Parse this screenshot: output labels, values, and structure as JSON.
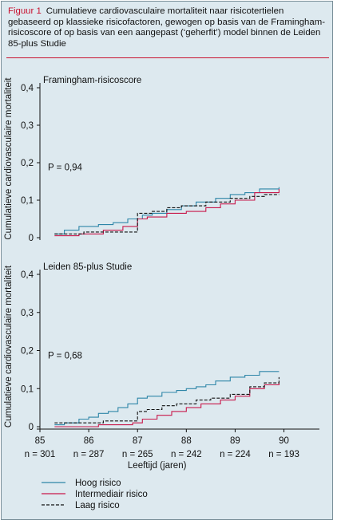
{
  "caption": {
    "label": "Figuur 1",
    "text": "Cumulatieve cardiovasculaire mortaliteit naar risicotertielen gebaseerd op klassieke risicofactoren, gewogen op basis van de Framingham-risicoscore of op basis van een aangepast (‘geherfit’) model binnen de Leiden 85-plus Studie"
  },
  "chart_data": [
    {
      "type": "line",
      "title": "Framingham-risicoscore",
      "annotation": "P = 0,94",
      "ylabel": "Cumulatieve cardiovasculaire mortaliteit",
      "xlim": [
        85,
        90.4
      ],
      "ylim": [
        0,
        0.4
      ],
      "y_ticks": [
        0,
        0.1,
        0.2,
        0.3,
        0.4
      ],
      "y_tick_labels": [
        "0",
        "0,1",
        "0,2",
        "0,3",
        "0,4"
      ],
      "series": [
        {
          "name": "Hoog risico",
          "color": "#2e86a8",
          "dash": "",
          "x": [
            85.3,
            85.5,
            85.8,
            86.0,
            86.2,
            86.5,
            86.8,
            87.1,
            87.3,
            87.6,
            87.9,
            88.2,
            88.6,
            88.9,
            89.2,
            89.5,
            89.9
          ],
          "y": [
            0.01,
            0.02,
            0.03,
            0.03,
            0.035,
            0.04,
            0.05,
            0.06,
            0.065,
            0.075,
            0.085,
            0.095,
            0.105,
            0.115,
            0.12,
            0.13,
            0.135
          ]
        },
        {
          "name": "Intermediair risico",
          "color": "#c8184a",
          "dash": "",
          "x": [
            85.3,
            85.8,
            86.3,
            86.7,
            87.0,
            87.2,
            87.6,
            88.0,
            88.4,
            88.7,
            89.0,
            89.4,
            89.9
          ],
          "y": [
            0.005,
            0.01,
            0.02,
            0.03,
            0.05,
            0.055,
            0.065,
            0.07,
            0.08,
            0.09,
            0.1,
            0.12,
            0.13
          ]
        },
        {
          "name": "Laag risico",
          "color": "#111111",
          "dash": "4,2",
          "x": [
            85.3,
            85.9,
            86.6,
            87.0,
            87.3,
            87.6,
            87.9,
            88.4,
            88.9,
            89.3,
            89.6,
            89.9
          ],
          "y": [
            0.01,
            0.015,
            0.015,
            0.065,
            0.07,
            0.08,
            0.085,
            0.095,
            0.105,
            0.11,
            0.115,
            0.115
          ]
        }
      ]
    },
    {
      "type": "line",
      "title": "Leiden 85-plus Studie",
      "annotation": "P = 0,68",
      "ylabel": "Cumulatieve cardiovasculaire mortaliteit",
      "xlabel": "Leeftijd (jaren)",
      "xlim": [
        85,
        90.4
      ],
      "ylim": [
        0,
        0.4
      ],
      "y_ticks": [
        0,
        0.1,
        0.2,
        0.3,
        0.4
      ],
      "y_tick_labels": [
        "0",
        "0,1",
        "0,2",
        "0,3",
        "0,4"
      ],
      "x_ticks": [
        85,
        86,
        87,
        88,
        89,
        90
      ],
      "x_tick_labels": [
        "85",
        "86",
        "87",
        "88",
        "89",
        "90"
      ],
      "n_at_risk": [
        "n = 301",
        "n = 287",
        "n = 265",
        "n = 242",
        "n = 224",
        "n = 193"
      ],
      "series": [
        {
          "name": "Hoog risico",
          "color": "#2e86a8",
          "dash": "",
          "x": [
            85.3,
            85.5,
            85.8,
            86.0,
            86.2,
            86.4,
            86.6,
            86.8,
            87.0,
            87.2,
            87.5,
            87.8,
            88.0,
            88.2,
            88.4,
            88.6,
            88.9,
            89.2,
            89.5,
            89.9
          ],
          "y": [
            0.005,
            0.01,
            0.02,
            0.025,
            0.035,
            0.04,
            0.05,
            0.06,
            0.075,
            0.08,
            0.09,
            0.095,
            0.1,
            0.105,
            0.11,
            0.12,
            0.13,
            0.135,
            0.145,
            0.145
          ]
        },
        {
          "name": "Intermediair risico",
          "color": "#c8184a",
          "dash": "",
          "x": [
            85.3,
            86.2,
            86.9,
            87.1,
            87.4,
            87.7,
            88.0,
            88.3,
            88.7,
            89.0,
            89.3,
            89.6,
            89.9
          ],
          "y": [
            0,
            0.005,
            0.01,
            0.02,
            0.03,
            0.04,
            0.05,
            0.06,
            0.07,
            0.08,
            0.1,
            0.11,
            0.115
          ]
        },
        {
          "name": "Laag risico",
          "color": "#111111",
          "dash": "4,2",
          "x": [
            85.3,
            85.7,
            86.3,
            86.9,
            87.0,
            87.2,
            87.5,
            87.8,
            88.2,
            88.5,
            88.9,
            89.3,
            89.6,
            89.9
          ],
          "y": [
            0.01,
            0.01,
            0.015,
            0.015,
            0.04,
            0.045,
            0.055,
            0.06,
            0.07,
            0.075,
            0.085,
            0.105,
            0.115,
            0.13
          ]
        }
      ]
    }
  ],
  "legend": [
    {
      "label": "Hoog risico",
      "color": "#2e86a8",
      "dash": ""
    },
    {
      "label": "Intermediair risico",
      "color": "#c8184a",
      "dash": ""
    },
    {
      "label": "Laag risico",
      "color": "#111111",
      "dash": "4,2"
    }
  ]
}
